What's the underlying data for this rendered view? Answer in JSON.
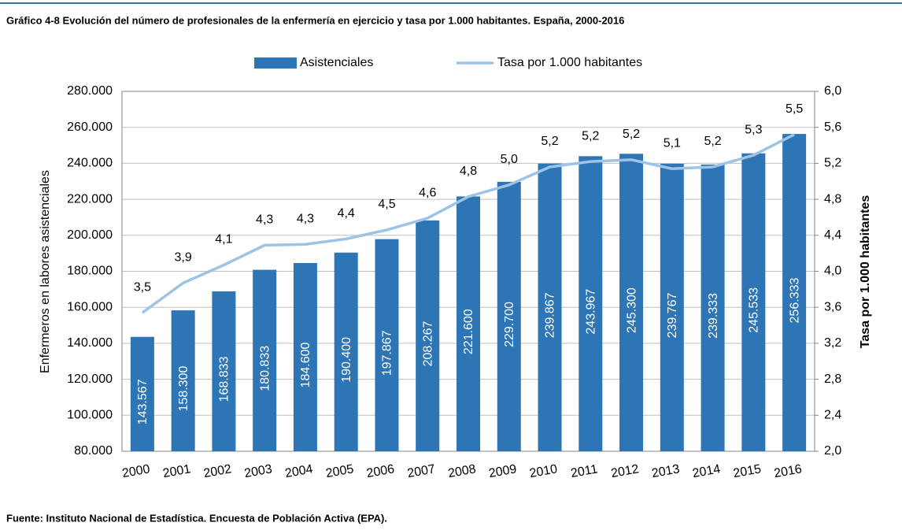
{
  "chart_data": {
    "type": "bar-line",
    "title": "Gráfico 4-8 Evolución del número de profesionales de la enfermería en ejercicio y tasa por 1.000 habitantes. España, 2000-2016",
    "source": "Fuente: Instituto Nacional de Estadística. Encuesta de Población Activa (EPA).",
    "ylabel": "Enfermeros en labores asistenciales",
    "y2label": "Tasa por 1.000 habitantes",
    "categories": [
      "2000",
      "2001",
      "2002",
      "2003",
      "2004",
      "2005",
      "2006",
      "2007",
      "2008",
      "2009",
      "2010",
      "2011",
      "2012",
      "2013",
      "2014",
      "2015",
      "2016"
    ],
    "series": [
      {
        "name": "Asistenciales",
        "type": "bar",
        "axis": "y",
        "color": "#2e75b6",
        "values": [
          143567,
          158300,
          168833,
          180833,
          184600,
          190400,
          197867,
          208267,
          221600,
          229700,
          239867,
          243967,
          245300,
          239767,
          239333,
          245533,
          256333
        ],
        "value_labels": [
          "143.567",
          "158.300",
          "168.833",
          "180.833",
          "184.600",
          "190.400",
          "197.867",
          "208.267",
          "221.600",
          "229.700",
          "239.867",
          "243.967",
          "245.300",
          "239.767",
          "239.333",
          "245.533",
          "256.333"
        ]
      },
      {
        "name": "Tasa por 1.000 habitantes",
        "type": "line",
        "axis": "y2",
        "color": "#9dc3e6",
        "values": [
          3.54,
          3.87,
          4.07,
          4.29,
          4.3,
          4.36,
          4.46,
          4.59,
          4.83,
          4.96,
          5.16,
          5.22,
          5.24,
          5.14,
          5.16,
          5.29,
          5.52
        ],
        "value_labels": [
          "3,5",
          "3,9",
          "4,1",
          "4,3",
          "4,3",
          "4,4",
          "4,5",
          "4,6",
          "4,8",
          "5,0",
          "5,2",
          "5,2",
          "5,2",
          "5,1",
          "5,2",
          "5,3",
          "5,5"
        ]
      }
    ],
    "ylim": [
      80000,
      280000
    ],
    "yticks": [
      {
        "value": 80000,
        "label": "80.000"
      },
      {
        "value": 100000,
        "label": "100.000"
      },
      {
        "value": 120000,
        "label": "120.000"
      },
      {
        "value": 140000,
        "label": "140.000"
      },
      {
        "value": 160000,
        "label": "160.000"
      },
      {
        "value": 180000,
        "label": "180.000"
      },
      {
        "value": 200000,
        "label": "200.000"
      },
      {
        "value": 220000,
        "label": "220.000"
      },
      {
        "value": 240000,
        "label": "240.000"
      },
      {
        "value": 260000,
        "label": "260.000"
      },
      {
        "value": 280000,
        "label": "280.000"
      }
    ],
    "y2lim": [
      2.0,
      6.0
    ],
    "y2ticks": [
      {
        "value": 2.0,
        "label": "2,0"
      },
      {
        "value": 2.4,
        "label": "2,4"
      },
      {
        "value": 2.8,
        "label": "2,8"
      },
      {
        "value": 3.2,
        "label": "3,2"
      },
      {
        "value": 3.6,
        "label": "3,6"
      },
      {
        "value": 4.0,
        "label": "4,0"
      },
      {
        "value": 4.4,
        "label": "4,4"
      },
      {
        "value": 4.8,
        "label": "4,8"
      },
      {
        "value": 5.2,
        "label": "5,2"
      },
      {
        "value": 5.6,
        "label": "5,6"
      },
      {
        "value": 6.0,
        "label": "6,0"
      }
    ],
    "grid": true,
    "legend": "top"
  }
}
